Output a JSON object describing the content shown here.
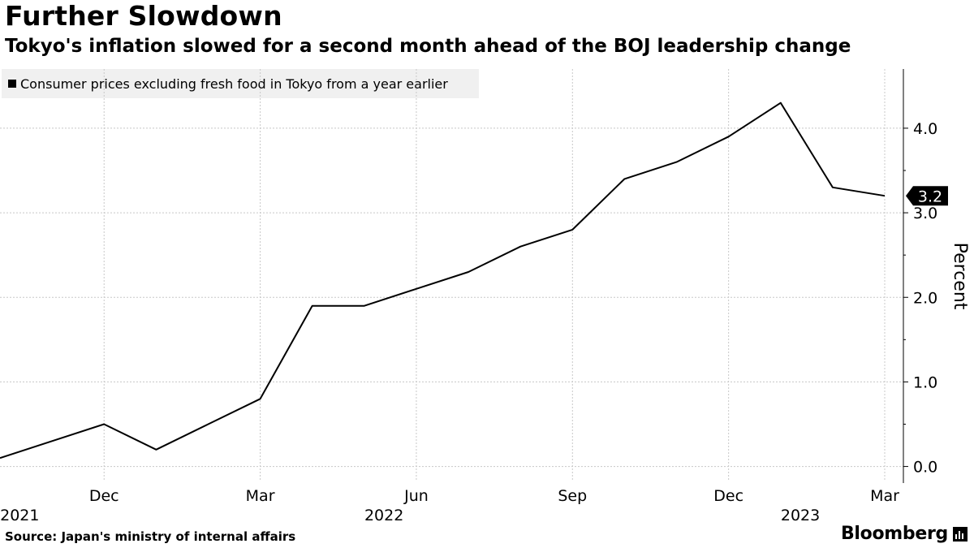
{
  "title": "Further Slowdown",
  "subtitle": "Tokyo's inflation slowed for a second month ahead of the BOJ leadership change",
  "source": "Source: Japan's ministry of internal affairs",
  "brand": "Bloomberg",
  "colors": {
    "line": "#000000",
    "grid": "#c8c8c8",
    "legend_bg": "#f0f0f0",
    "callout_bg": "#000000",
    "callout_text": "#ffffff"
  },
  "chart_data": {
    "type": "line",
    "legend_position": "top-left",
    "grid": true,
    "ylabel": "Percent",
    "ylim": [
      -0.1,
      4.7
    ],
    "yticks": [
      0.0,
      1.0,
      2.0,
      3.0,
      4.0
    ],
    "ytick_labels": [
      "0.0",
      "1.0",
      "2.0",
      "3.0",
      "4.0"
    ],
    "xlim": [
      "2021-10",
      "2023-03"
    ],
    "x_month_ticks": [
      {
        "x": "2021-12",
        "label": "Dec"
      },
      {
        "x": "2022-03",
        "label": "Mar"
      },
      {
        "x": "2022-06",
        "label": "Jun"
      },
      {
        "x": "2022-09",
        "label": "Sep"
      },
      {
        "x": "2022-12",
        "label": "Dec"
      },
      {
        "x": "2023-03",
        "label": "Mar"
      }
    ],
    "x_year_labels": [
      {
        "x": "2021-11",
        "label": "2021"
      },
      {
        "x": "2022-06",
        "label": "2022"
      },
      {
        "x": "2023-02",
        "label": "2023"
      }
    ],
    "series": [
      {
        "name": "Consumer prices excluding fresh food in Tokyo from a year earlier",
        "x": [
          "2021-10",
          "2021-11",
          "2021-12",
          "2022-01",
          "2022-02",
          "2022-03",
          "2022-04",
          "2022-05",
          "2022-06",
          "2022-07",
          "2022-08",
          "2022-09",
          "2022-10",
          "2022-11",
          "2022-12",
          "2023-01",
          "2023-02",
          "2023-03"
        ],
        "values": [
          0.1,
          0.3,
          0.5,
          0.2,
          0.5,
          0.8,
          1.9,
          1.9,
          2.1,
          2.3,
          2.6,
          2.8,
          3.4,
          3.6,
          3.9,
          4.3,
          3.3,
          3.2
        ]
      }
    ],
    "last_value_label": "3.2"
  }
}
